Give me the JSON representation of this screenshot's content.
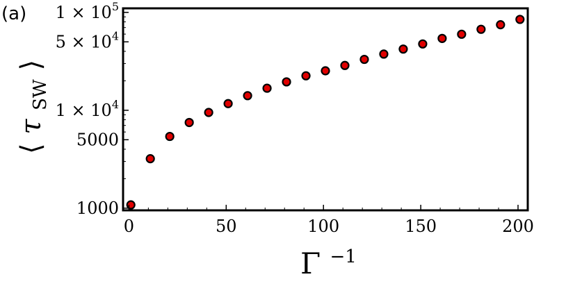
{
  "panel_label": "(a)",
  "chart_data": {
    "type": "scatter",
    "title": "",
    "xlabel": {
      "base": "Γ",
      "sup": "−1"
    },
    "ylabel": {
      "open": "⟨",
      "symbol": "τ",
      "sub": "SW",
      "close": "⟩"
    },
    "x_scale": "linear",
    "y_scale": "log",
    "xlim": [
      -3,
      205
    ],
    "ylim": [
      950,
      110000
    ],
    "x_ticks": [
      {
        "value": 0,
        "label": "0"
      },
      {
        "value": 50,
        "label": "50"
      },
      {
        "value": 100,
        "label": "100"
      },
      {
        "value": 150,
        "label": "150"
      },
      {
        "value": 200,
        "label": "200"
      }
    ],
    "y_ticks": [
      {
        "value": 1000,
        "label": "1000"
      },
      {
        "value": 5000,
        "label": "5000"
      },
      {
        "value": 10000,
        "label": "1 × 10",
        "exp": "4"
      },
      {
        "value": 50000,
        "label": "5 × 10",
        "exp": "4"
      },
      {
        "value": 100000,
        "label": "1 × 10",
        "exp": "5"
      }
    ],
    "grid": false,
    "legend": "none",
    "marker": {
      "fill": "#e00000",
      "stroke": "#000000"
    },
    "series": [
      {
        "x": [
          1,
          11,
          21,
          31,
          41,
          51,
          61,
          71,
          81,
          91,
          101,
          111,
          121,
          131,
          141,
          151,
          161,
          171,
          181,
          191,
          201
        ],
        "y": [
          1080,
          3200,
          5400,
          7500,
          9500,
          11700,
          14100,
          16800,
          19500,
          22500,
          25300,
          28700,
          33100,
          37500,
          42200,
          47600,
          54200,
          59800,
          67200,
          74800,
          84800
        ]
      }
    ]
  }
}
